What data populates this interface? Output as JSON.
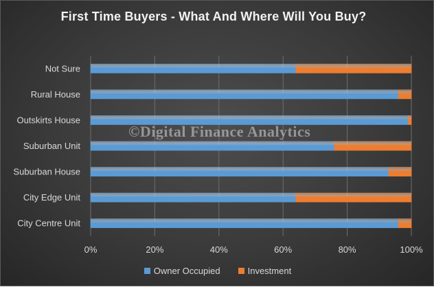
{
  "chart_data": {
    "type": "bar",
    "orientation": "horizontal",
    "stacked": "percent",
    "title": "First Time Buyers - What And Where Will You Buy?",
    "categories": [
      "Not Sure",
      "Rural House",
      "Outskirts House",
      "Suburban Unit",
      "Suburban House",
      "City Edge Unit",
      "City Centre Unit"
    ],
    "series": [
      {
        "name": "Owner Occupied",
        "color": "#5b9bd5",
        "values": [
          64,
          96,
          99,
          76,
          93,
          64,
          96
        ]
      },
      {
        "name": "Investment",
        "color": "#ed7d31",
        "values": [
          36,
          4,
          1,
          24,
          7,
          36,
          4
        ]
      }
    ],
    "xlim": [
      0,
      100
    ],
    "x_ticks": [
      "0%",
      "20%",
      "40%",
      "60%",
      "80%",
      "100%"
    ],
    "grid": true,
    "legend_position": "bottom",
    "watermark": "©Digital Finance Analytics"
  }
}
